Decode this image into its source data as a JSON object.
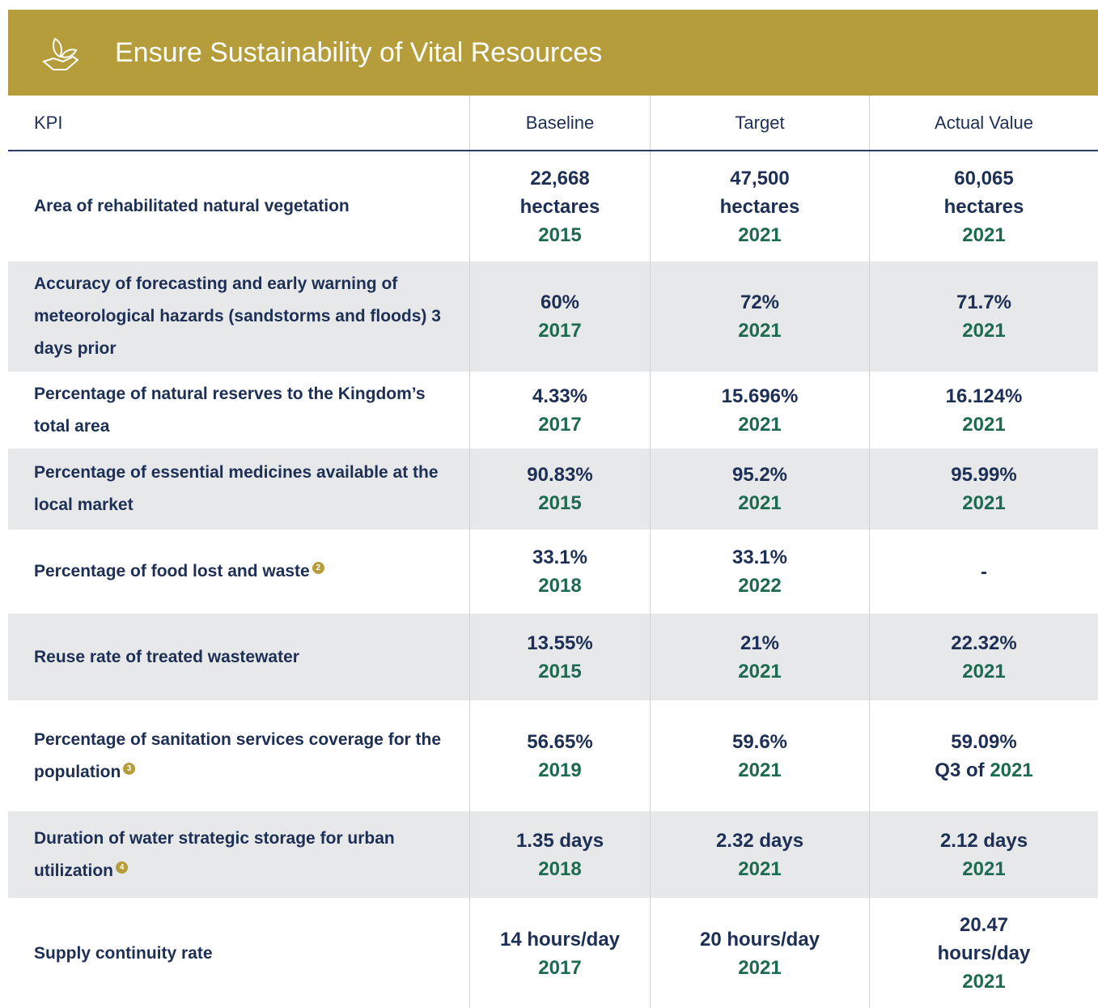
{
  "header": {
    "title": "Ensure Sustainability of Vital Resources"
  },
  "table": {
    "columns": [
      "KPI",
      "Baseline",
      "Target",
      "Actual Value"
    ],
    "rows": [
      {
        "kpi": "Area of rehabilitated natural vegetation",
        "cells": [
          {
            "value": "22,668 hectares",
            "year": "2015"
          },
          {
            "value": "47,500 hectares",
            "year": "2021"
          },
          {
            "value": "60,065 hectares",
            "year": "2021"
          }
        ]
      },
      {
        "kpi": "Accuracy of forecasting and early warning of meteorological hazards (sandstorms and floods) 3 days prior",
        "cells": [
          {
            "value": "60%",
            "year": "2017"
          },
          {
            "value": "72%",
            "year": "2021"
          },
          {
            "value": "71.7%",
            "year": "2021"
          }
        ]
      },
      {
        "kpi": "Percentage of natural reserves to the Kingdom’s total area",
        "cells": [
          {
            "value": "4.33%",
            "year": "2017"
          },
          {
            "value": "15.696%",
            "year": "2021"
          },
          {
            "value": "16.124%",
            "year": "2021"
          }
        ]
      },
      {
        "kpi": "Percentage of essential medicines available at the local market",
        "cells": [
          {
            "value": "90.83%",
            "year": "2015"
          },
          {
            "value": "95.2%",
            "year": "2021"
          },
          {
            "value": "95.99%",
            "year": "2021"
          }
        ]
      },
      {
        "kpi": "Percentage of food lost and waste",
        "note": "2",
        "cells": [
          {
            "value": "33.1%",
            "year": "2018"
          },
          {
            "value": "33.1%",
            "year": "2022"
          },
          {
            "value": "-"
          }
        ]
      },
      {
        "kpi": "Reuse rate of treated wastewater",
        "cells": [
          {
            "value": "13.55%",
            "year": "2015"
          },
          {
            "value": "21%",
            "year": "2021"
          },
          {
            "value": "22.32%",
            "year": "2021"
          }
        ]
      },
      {
        "kpi": "Percentage of sanitation services coverage for the population",
        "note": "3",
        "cells": [
          {
            "value": "56.65%",
            "year": "2019"
          },
          {
            "value": "59.6%",
            "year": "2021"
          },
          {
            "value": "59.09%",
            "prefix": "Q3 of",
            "year": "2021"
          }
        ]
      },
      {
        "kpi": "Duration of water strategic storage for urban utilization",
        "note": "4",
        "cells": [
          {
            "value": "1.35 days",
            "year": "2018"
          },
          {
            "value": "2.32 days",
            "year": "2021"
          },
          {
            "value": "2.12 days",
            "year": "2021"
          }
        ]
      },
      {
        "kpi": "Supply continuity rate",
        "cells": [
          {
            "value": "14 hours/day",
            "year": "2017"
          },
          {
            "value": "20 hours/day",
            "year": "2021"
          },
          {
            "value": "20.47 hours/day",
            "year": "2021"
          }
        ]
      }
    ]
  }
}
